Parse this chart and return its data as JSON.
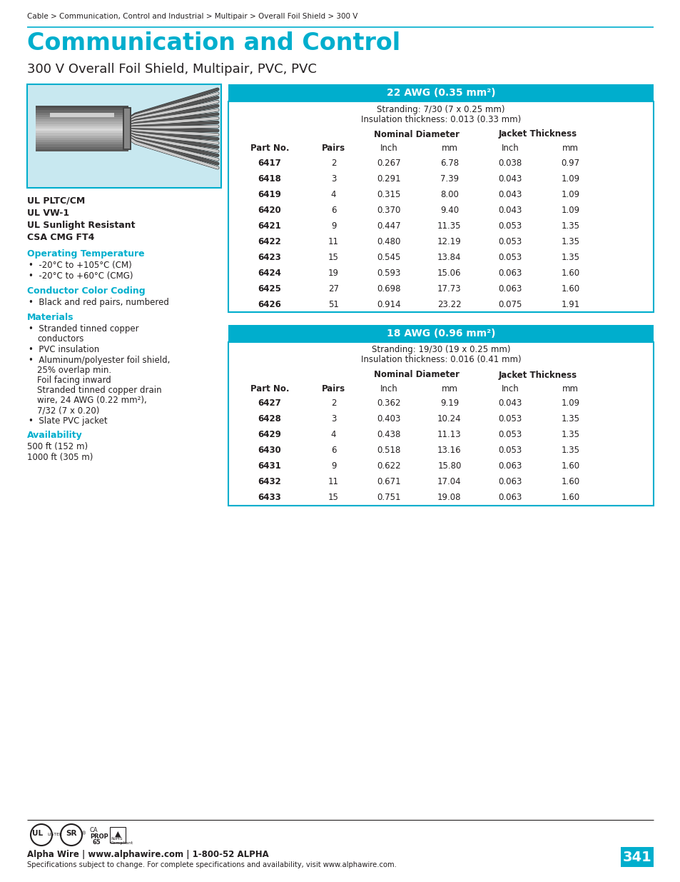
{
  "breadcrumb": "Cable > Communication, Control and Industrial > Multipair > Overall Foil Shield > 300 V",
  "title": "Communication and Control",
  "subtitle": "300 V Overall Foil Shield, Multipair, PVC, PVC",
  "title_color": "#00AECD",
  "breadcrumb_color": "#231F20",
  "subtitle_color": "#231F20",
  "left_panel_bg": "#C8E8F0",
  "left_panel_border": "#00AECD",
  "header_bg": "#00AECD",
  "header_text_color": "#FFFFFF",
  "table_line_color": "#00AECD",
  "certifications": [
    "UL PLTC/CM",
    "UL VW-1",
    "UL Sunlight Resistant",
    "CSA CMG FT4"
  ],
  "op_temp_title": "Operating Temperature",
  "op_temp_items": [
    "-20°C to +105°C (CM)",
    "-20°C to +60°C (CMG)"
  ],
  "color_coding_title": "Conductor Color Coding",
  "color_coding_items": [
    "Black and red pairs, numbered"
  ],
  "materials_title": "Materials",
  "materials_items_line1": "Stranded tinned copper",
  "materials_items_line2": "conductors",
  "materials_items_line3": "PVC insulation",
  "materials_items_line4": "Aluminum/polyester foil shield,",
  "materials_items_line5": "25% overlap min.",
  "materials_items_line6": "Foil facing inward",
  "materials_items_line7": "Stranded tinned copper drain",
  "materials_items_line8": "wire, 24 AWG (0.22 mm²),",
  "materials_items_line9": "7/32 (7 x 0.20)",
  "materials_items_line10": "Slate PVC jacket",
  "availability_title": "Availability",
  "availability_items": [
    "500 ft (152 m)",
    "1000 ft (305 m)"
  ],
  "table1_header": "22 AWG (0.35 mm²)",
  "table1_stranding_line1": "Stranding: 7/30 (7 x 0.25 mm)",
  "table1_stranding_line2": "Insulation thickness: 0.013 (0.33 mm)",
  "table1_data": [
    [
      "6417",
      "2",
      "0.267",
      "6.78",
      "0.038",
      "0.97"
    ],
    [
      "6418",
      "3",
      "0.291",
      "7.39",
      "0.043",
      "1.09"
    ],
    [
      "6419",
      "4",
      "0.315",
      "8.00",
      "0.043",
      "1.09"
    ],
    [
      "6420",
      "6",
      "0.370",
      "9.40",
      "0.043",
      "1.09"
    ],
    [
      "6421",
      "9",
      "0.447",
      "11.35",
      "0.053",
      "1.35"
    ],
    [
      "6422",
      "11",
      "0.480",
      "12.19",
      "0.053",
      "1.35"
    ],
    [
      "6423",
      "15",
      "0.545",
      "13.84",
      "0.053",
      "1.35"
    ],
    [
      "6424",
      "19",
      "0.593",
      "15.06",
      "0.063",
      "1.60"
    ],
    [
      "6425",
      "27",
      "0.698",
      "17.73",
      "0.063",
      "1.60"
    ],
    [
      "6426",
      "51",
      "0.914",
      "23.22",
      "0.075",
      "1.91"
    ]
  ],
  "table2_header": "18 AWG (0.96 mm²)",
  "table2_stranding_line1": "Stranding: 19/30 (19 x 0.25 mm)",
  "table2_stranding_line2": "Insulation thickness: 0.016 (0.41 mm)",
  "table2_data": [
    [
      "6427",
      "2",
      "0.362",
      "9.19",
      "0.043",
      "1.09"
    ],
    [
      "6428",
      "3",
      "0.403",
      "10.24",
      "0.053",
      "1.35"
    ],
    [
      "6429",
      "4",
      "0.438",
      "11.13",
      "0.053",
      "1.35"
    ],
    [
      "6430",
      "6",
      "0.518",
      "13.16",
      "0.053",
      "1.35"
    ],
    [
      "6431",
      "9",
      "0.622",
      "15.80",
      "0.063",
      "1.60"
    ],
    [
      "6432",
      "11",
      "0.671",
      "17.04",
      "0.063",
      "1.60"
    ],
    [
      "6433",
      "15",
      "0.751",
      "19.08",
      "0.063",
      "1.60"
    ]
  ],
  "footer_company": "Alpha Wire | www.alphawire.com | 1-800-52 ALPHA",
  "footer_note": "Specifications subject to change. For complete specifications and availability, visit www.alphawire.com.",
  "page_number": "341",
  "page_bg": "#00AECD",
  "page_text_color": "#FFFFFF"
}
